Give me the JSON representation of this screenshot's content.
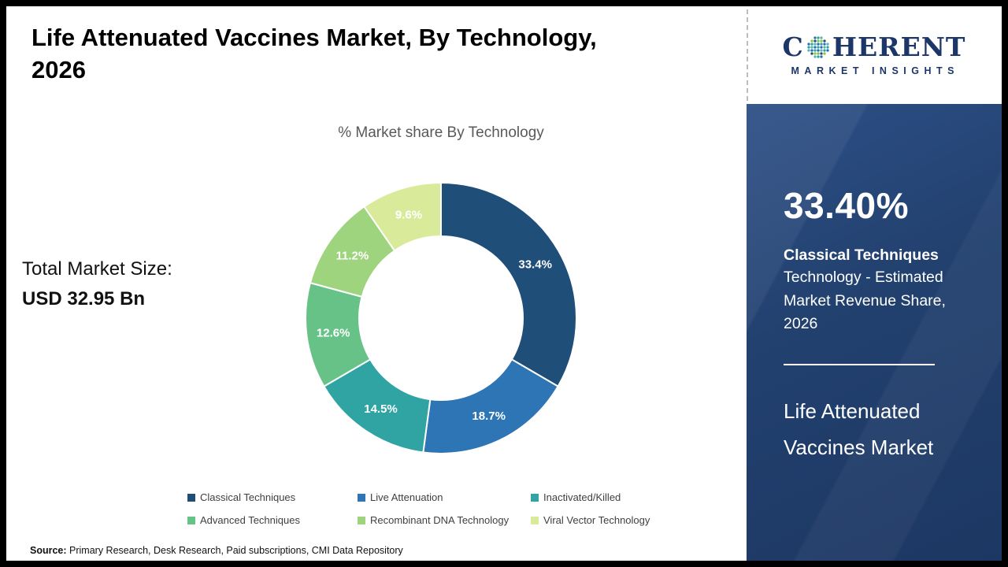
{
  "header": {
    "title_line1": "Life Attenuated Vaccines Market, By Technology,",
    "title_line2": "2026"
  },
  "chart_data": {
    "type": "donut",
    "title": "% Market share By Technology",
    "unit": "%",
    "legend_position": "bottom",
    "segments": [
      {
        "label": "Classical Techniques",
        "value": 33.4,
        "color": "#1f4e79"
      },
      {
        "label": "Live Attenuation",
        "value": 18.7,
        "color": "#2e75b6"
      },
      {
        "label": "Inactivated/Killed",
        "value": 14.5,
        "color": "#30a3a3"
      },
      {
        "label": "Advanced Techniques",
        "value": 12.6,
        "color": "#67c287"
      },
      {
        "label": "Recombinant DNA Technology",
        "value": 11.2,
        "color": "#9ed47d"
      },
      {
        "label": "Viral Vector Technology",
        "value": 9.6,
        "color": "#d9eb9a"
      }
    ]
  },
  "market_size": {
    "label": "Total Market Size:",
    "value": "USD 32.95 Bn"
  },
  "source": {
    "label": "Source:",
    "text": " Primary Research, Desk Research, Paid subscriptions, CMI Data Repository"
  },
  "sidebar": {
    "stat_value": "33.40%",
    "stat_title": "Classical Techniques",
    "stat_description": "Technology - Estimated Market Revenue Share, 2026",
    "market_name_line1": "Life Attenuated",
    "market_name_line2": "Vaccines Market"
  },
  "logo": {
    "brand_c": "C",
    "brand_rest": "HERENT",
    "subtitle": "MARKET INSIGHTS",
    "globe_colors": [
      "#2ea39a",
      "#79bf4d",
      "#2a6db5",
      "#1f4e79",
      "#57b7ae",
      "#8cc63f"
    ]
  }
}
